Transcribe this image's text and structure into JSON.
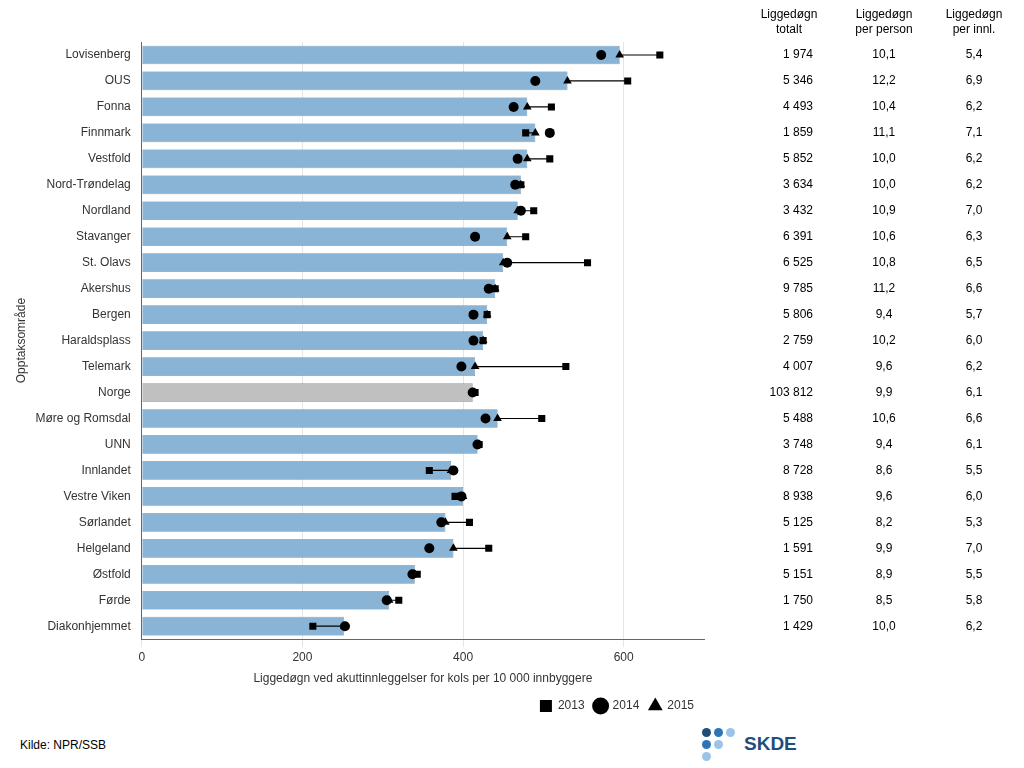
{
  "chart_data": {
    "type": "bar",
    "orientation": "horizontal",
    "xlabel": "Liggedøgn ved akuttinnleggelser for kols per 10 000 innbyggere",
    "ylabel": "Opptaksområde",
    "categories": [
      "Lovisenberg",
      "OUS",
      "Fonna",
      "Finnmark",
      "Vestfold",
      "Nord-Trøndelag",
      "Nordland",
      "Stavanger",
      "St. Olavs",
      "Akershus",
      "Bergen",
      "Haraldsplass",
      "Telemark",
      "Norge",
      "Møre og Romsdal",
      "UNN",
      "Innlandet",
      "Vestre Viken",
      "Sørlandet",
      "Helgeland",
      "Østfold",
      "Førde",
      "Diakonhjemmet"
    ],
    "series": [
      {
        "name": "2013",
        "type": "scatter",
        "marker": "square",
        "color": "#000000",
        "values": [
          645,
          605,
          510,
          478,
          508,
          472,
          488,
          478,
          555,
          440,
          430,
          425,
          528,
          415,
          498,
          420,
          358,
          390,
          408,
          432,
          343,
          320,
          213
        ]
      },
      {
        "name": "2014",
        "type": "scatter",
        "marker": "circle",
        "color": "#000000",
        "values": [
          572,
          490,
          463,
          508,
          468,
          465,
          472,
          415,
          455,
          432,
          413,
          413,
          398,
          412,
          428,
          418,
          388,
          398,
          373,
          358,
          337,
          305,
          253
        ]
      },
      {
        "name": "2015",
        "type": "bar",
        "marker": "triangle",
        "color": "#000000",
        "colors": [
          "#8ab4d6",
          "#8ab4d6",
          "#8ab4d6",
          "#8ab4d6",
          "#8ab4d6",
          "#8ab4d6",
          "#8ab4d6",
          "#8ab4d6",
          "#8ab4d6",
          "#8ab4d6",
          "#8ab4d6",
          "#8ab4d6",
          "#8ab4d6",
          "#c0c0c0",
          "#8ab4d6",
          "#8ab4d6",
          "#8ab4d6",
          "#8ab4d6",
          "#8ab4d6",
          "#8ab4d6",
          "#8ab4d6",
          "#8ab4d6",
          "#8ab4d6"
        ],
        "values": [
          595,
          530,
          480,
          490,
          480,
          472,
          468,
          455,
          450,
          440,
          430,
          425,
          415,
          412,
          443,
          418,
          385,
          400,
          378,
          388,
          340,
          308,
          252
        ]
      }
    ],
    "xlim": [
      0,
      700
    ],
    "xticks": [
      0,
      200,
      400,
      600
    ],
    "grid": true,
    "legend": "lower right",
    "table": {
      "columns": [
        {
          "header": "Liggedøgn\ntotalt",
          "values": [
            "1 974",
            "5 346",
            "4 493",
            "1 859",
            "5 852",
            "3 634",
            "3 432",
            "6 391",
            "6 525",
            "9 785",
            "5 806",
            "2 759",
            "4 007",
            "103 812",
            "5 488",
            "3 748",
            "8 728",
            "8 938",
            "5 125",
            "1 591",
            "5 151",
            "1 750",
            "1 429"
          ]
        },
        {
          "header": "Liggedøgn\nper person",
          "values": [
            "10,1",
            "12,2",
            "10,4",
            "11,1",
            "10,0",
            "10,0",
            "10,9",
            "10,6",
            "10,8",
            "11,2",
            "9,4",
            "10,2",
            "9,6",
            "9,9",
            "10,6",
            "9,4",
            "8,6",
            "9,6",
            "8,2",
            "9,9",
            "8,9",
            "8,5",
            "10,0"
          ]
        },
        {
          "header": "Liggedøgn\nper innl.",
          "values": [
            "5,4",
            "6,9",
            "6,2",
            "7,1",
            "6,2",
            "6,2",
            "7,0",
            "6,3",
            "6,5",
            "6,6",
            "5,7",
            "6,0",
            "6,2",
            "6,1",
            "6,6",
            "6,1",
            "5,5",
            "6,0",
            "5,3",
            "7,0",
            "5,5",
            "5,8",
            "6,2"
          ]
        }
      ]
    },
    "source": "Kilde: NPR/SSB",
    "annotations": [
      "SKDE"
    ]
  }
}
